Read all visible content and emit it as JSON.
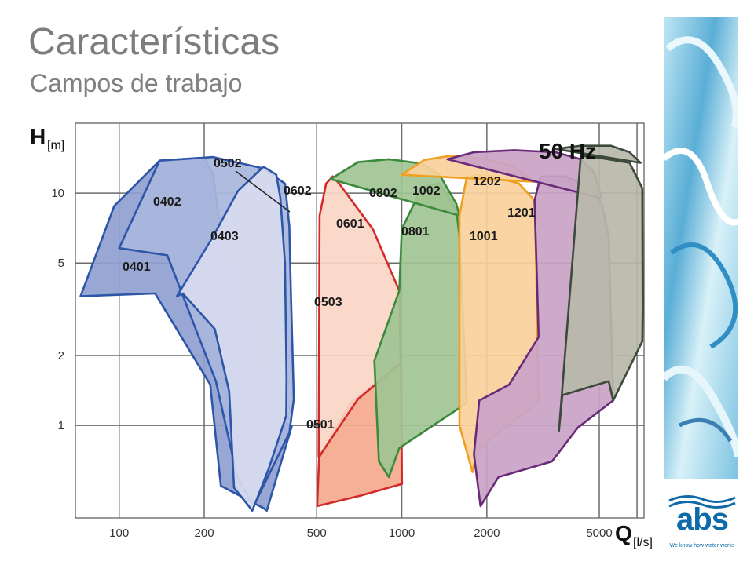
{
  "slide": {
    "title": "Características",
    "subtitle": "Campos de trabajo"
  },
  "colors": {
    "title": "#7d7d7d",
    "water_panel": "#5aaed6",
    "logo": "#0e6aa8"
  },
  "logo": {
    "text": "abs",
    "tagline": "We know how water works"
  },
  "chart_data": {
    "type": "area",
    "frequency_label": "50 Hz",
    "ylabel_main": "H",
    "ylabel_unit": "[m]",
    "xlabel_main": "Q",
    "xlabel_unit": "[l/s]",
    "x_scale": "log",
    "y_scale": "log",
    "grid": true,
    "xlim": [
      70,
      7200
    ],
    "ylim": [
      0.4,
      20
    ],
    "x_ticks": [
      100,
      200,
      500,
      1000,
      2000,
      5000
    ],
    "y_ticks": [
      1,
      2,
      5,
      10
    ],
    "series": [
      {
        "name": "0401",
        "fill": "#8f9fcf",
        "stroke": "#2d56a8",
        "polygon": [
          [
            73,
            3.6
          ],
          [
            96,
            8.8
          ],
          [
            139,
            13.8
          ],
          [
            200,
            14.2
          ],
          [
            215,
            12
          ],
          [
            228,
            7
          ],
          [
            286,
            2.6
          ],
          [
            374,
            1.05
          ],
          [
            408,
            0.99
          ],
          [
            333,
            0.43
          ],
          [
            325,
            0.44
          ],
          [
            229,
            0.55
          ],
          [
            210,
            1.5
          ],
          [
            134,
            3.7
          ]
        ]
      },
      {
        "name": "0402",
        "fill": "#a9b6dc",
        "stroke": "#2d56a8",
        "polygon": [
          [
            100,
            5.8
          ],
          [
            139,
            13.8
          ],
          [
            215,
            14.3
          ],
          [
            322,
            12.8
          ],
          [
            386,
            11
          ],
          [
            400,
            7.2
          ],
          [
            405,
            3.8
          ],
          [
            415,
            1.3
          ],
          [
            400,
            0.93
          ],
          [
            299,
            0.45
          ],
          [
            262,
            0.6
          ],
          [
            220,
            1.55
          ],
          [
            148,
            5.4
          ]
        ]
      },
      {
        "name": "0403",
        "fill": "#d7dbef",
        "stroke": "#2d56a8",
        "polygon": [
          [
            160,
            3.6
          ],
          [
            215,
            6.5
          ],
          [
            263,
            10.2
          ],
          [
            324,
            13
          ],
          [
            360,
            12
          ],
          [
            372,
            9.5
          ],
          [
            386,
            5
          ],
          [
            391,
            1.6
          ],
          [
            390,
            1.1
          ],
          [
            338,
            0.65
          ],
          [
            296,
            0.43
          ],
          [
            255,
            0.54
          ],
          [
            245,
            1.4
          ],
          [
            218,
            2.6
          ],
          [
            168,
            3.7
          ]
        ]
      },
      {
        "name": "0501",
        "fill": "#f4a98c",
        "stroke": "#d42a2a",
        "polygon": [
          [
            502,
            0.45
          ],
          [
            510,
            0.73
          ],
          [
            660,
            1.25
          ],
          [
            994,
            1.85
          ],
          [
            1002,
            0.56
          ],
          [
            720,
            0.5
          ]
        ]
      },
      {
        "name": "0503",
        "fill": "#fad6c7",
        "stroke": "#d42a2a",
        "polygon": [
          [
            508,
            0.73
          ],
          [
            512,
            8
          ],
          [
            540,
            11
          ],
          [
            570,
            11.8
          ],
          [
            600,
            11
          ],
          [
            790,
            7
          ],
          [
            980,
            3.8
          ],
          [
            990,
            1.85
          ],
          [
            700,
            1.3
          ]
        ]
      },
      {
        "name": "0601",
        "fill": "#9fc493",
        "stroke": "#3b8a3b",
        "polygon": [
          [
            830,
            0.7
          ],
          [
            800,
            1.9
          ],
          [
            980,
            3.8
          ],
          [
            1000,
            7
          ],
          [
            1180,
            10.6
          ],
          [
            1360,
            11
          ],
          [
            1560,
            8.5
          ],
          [
            1600,
            6.5
          ],
          [
            1700,
            1.25
          ],
          [
            980,
            0.8
          ],
          [
            900,
            0.6
          ]
        ]
      },
      {
        "name": "0602",
        "fill": "#9fc493",
        "stroke": "#3b8a3b",
        "polygon": [
          [
            560,
            11.5
          ],
          [
            700,
            13.6
          ],
          [
            900,
            14
          ],
          [
            1180,
            13.4
          ],
          [
            1360,
            12
          ],
          [
            1560,
            9
          ],
          [
            1600,
            8
          ]
        ]
      },
      {
        "name": "0801",
        "fill": "#fad19b",
        "stroke": "#f0a020",
        "polygon": [
          [
            1600,
            8
          ],
          [
            1700,
            11.8
          ],
          [
            2000,
            12
          ],
          [
            2600,
            11
          ],
          [
            2950,
            9.3
          ],
          [
            2990,
            4.8
          ],
          [
            3050,
            1.25
          ],
          [
            2300,
            0.98
          ],
          [
            1850,
            0.78
          ],
          [
            1780,
            0.63
          ],
          [
            1600,
            1
          ]
        ]
      },
      {
        "name": "0802",
        "fill": "#fad19b",
        "stroke": "#f0a020",
        "polygon": [
          [
            1000,
            12
          ],
          [
            1200,
            13.9
          ],
          [
            1500,
            14.5
          ],
          [
            2000,
            14
          ],
          [
            2500,
            13
          ],
          [
            2950,
            11.2
          ]
        ]
      },
      {
        "name": "1001",
        "fill": "#c9a3c5",
        "stroke": "#6a2a7a",
        "polygon": [
          [
            1800,
            0.75
          ],
          [
            1880,
            1.28
          ],
          [
            2400,
            1.5
          ],
          [
            3050,
            2.4
          ],
          [
            3000,
            4.8
          ],
          [
            2950,
            9.3
          ],
          [
            3100,
            11.8
          ],
          [
            3800,
            11.8
          ],
          [
            4700,
            10.5
          ],
          [
            5100,
            9
          ],
          [
            5400,
            6.5
          ],
          [
            5600,
            1.28
          ],
          [
            4200,
            0.98
          ],
          [
            3400,
            0.7
          ],
          [
            2200,
            0.6
          ],
          [
            1900,
            0.45
          ]
        ]
      },
      {
        "name": "1002",
        "fill": "#c9a3c5",
        "stroke": "#6a2a7a",
        "polygon": [
          [
            1450,
            14
          ],
          [
            1800,
            15
          ],
          [
            2500,
            15.3
          ],
          [
            3500,
            15
          ],
          [
            4300,
            14
          ],
          [
            4800,
            12.3
          ],
          [
            5100,
            9.5
          ]
        ]
      },
      {
        "name": "1201",
        "fill": "#b8b9a9",
        "stroke": "#3b4a3b",
        "polygon": [
          [
            3600,
            0.95
          ],
          [
            3700,
            1.35
          ],
          [
            5400,
            1.55
          ],
          [
            5600,
            1.28
          ],
          [
            7100,
            2.3
          ],
          [
            7120,
            3.2
          ],
          [
            7100,
            10.5
          ],
          [
            6400,
            13.5
          ],
          [
            4800,
            14.3
          ],
          [
            4300,
            14.5
          ]
        ]
      },
      {
        "name": "1202",
        "fill": "#b8b9a9",
        "stroke": "#3b4a3b",
        "polygon": [
          [
            3500,
            15.5
          ],
          [
            4300,
            16
          ],
          [
            5500,
            16
          ],
          [
            6400,
            15
          ],
          [
            7000,
            13.5
          ]
        ]
      }
    ]
  }
}
